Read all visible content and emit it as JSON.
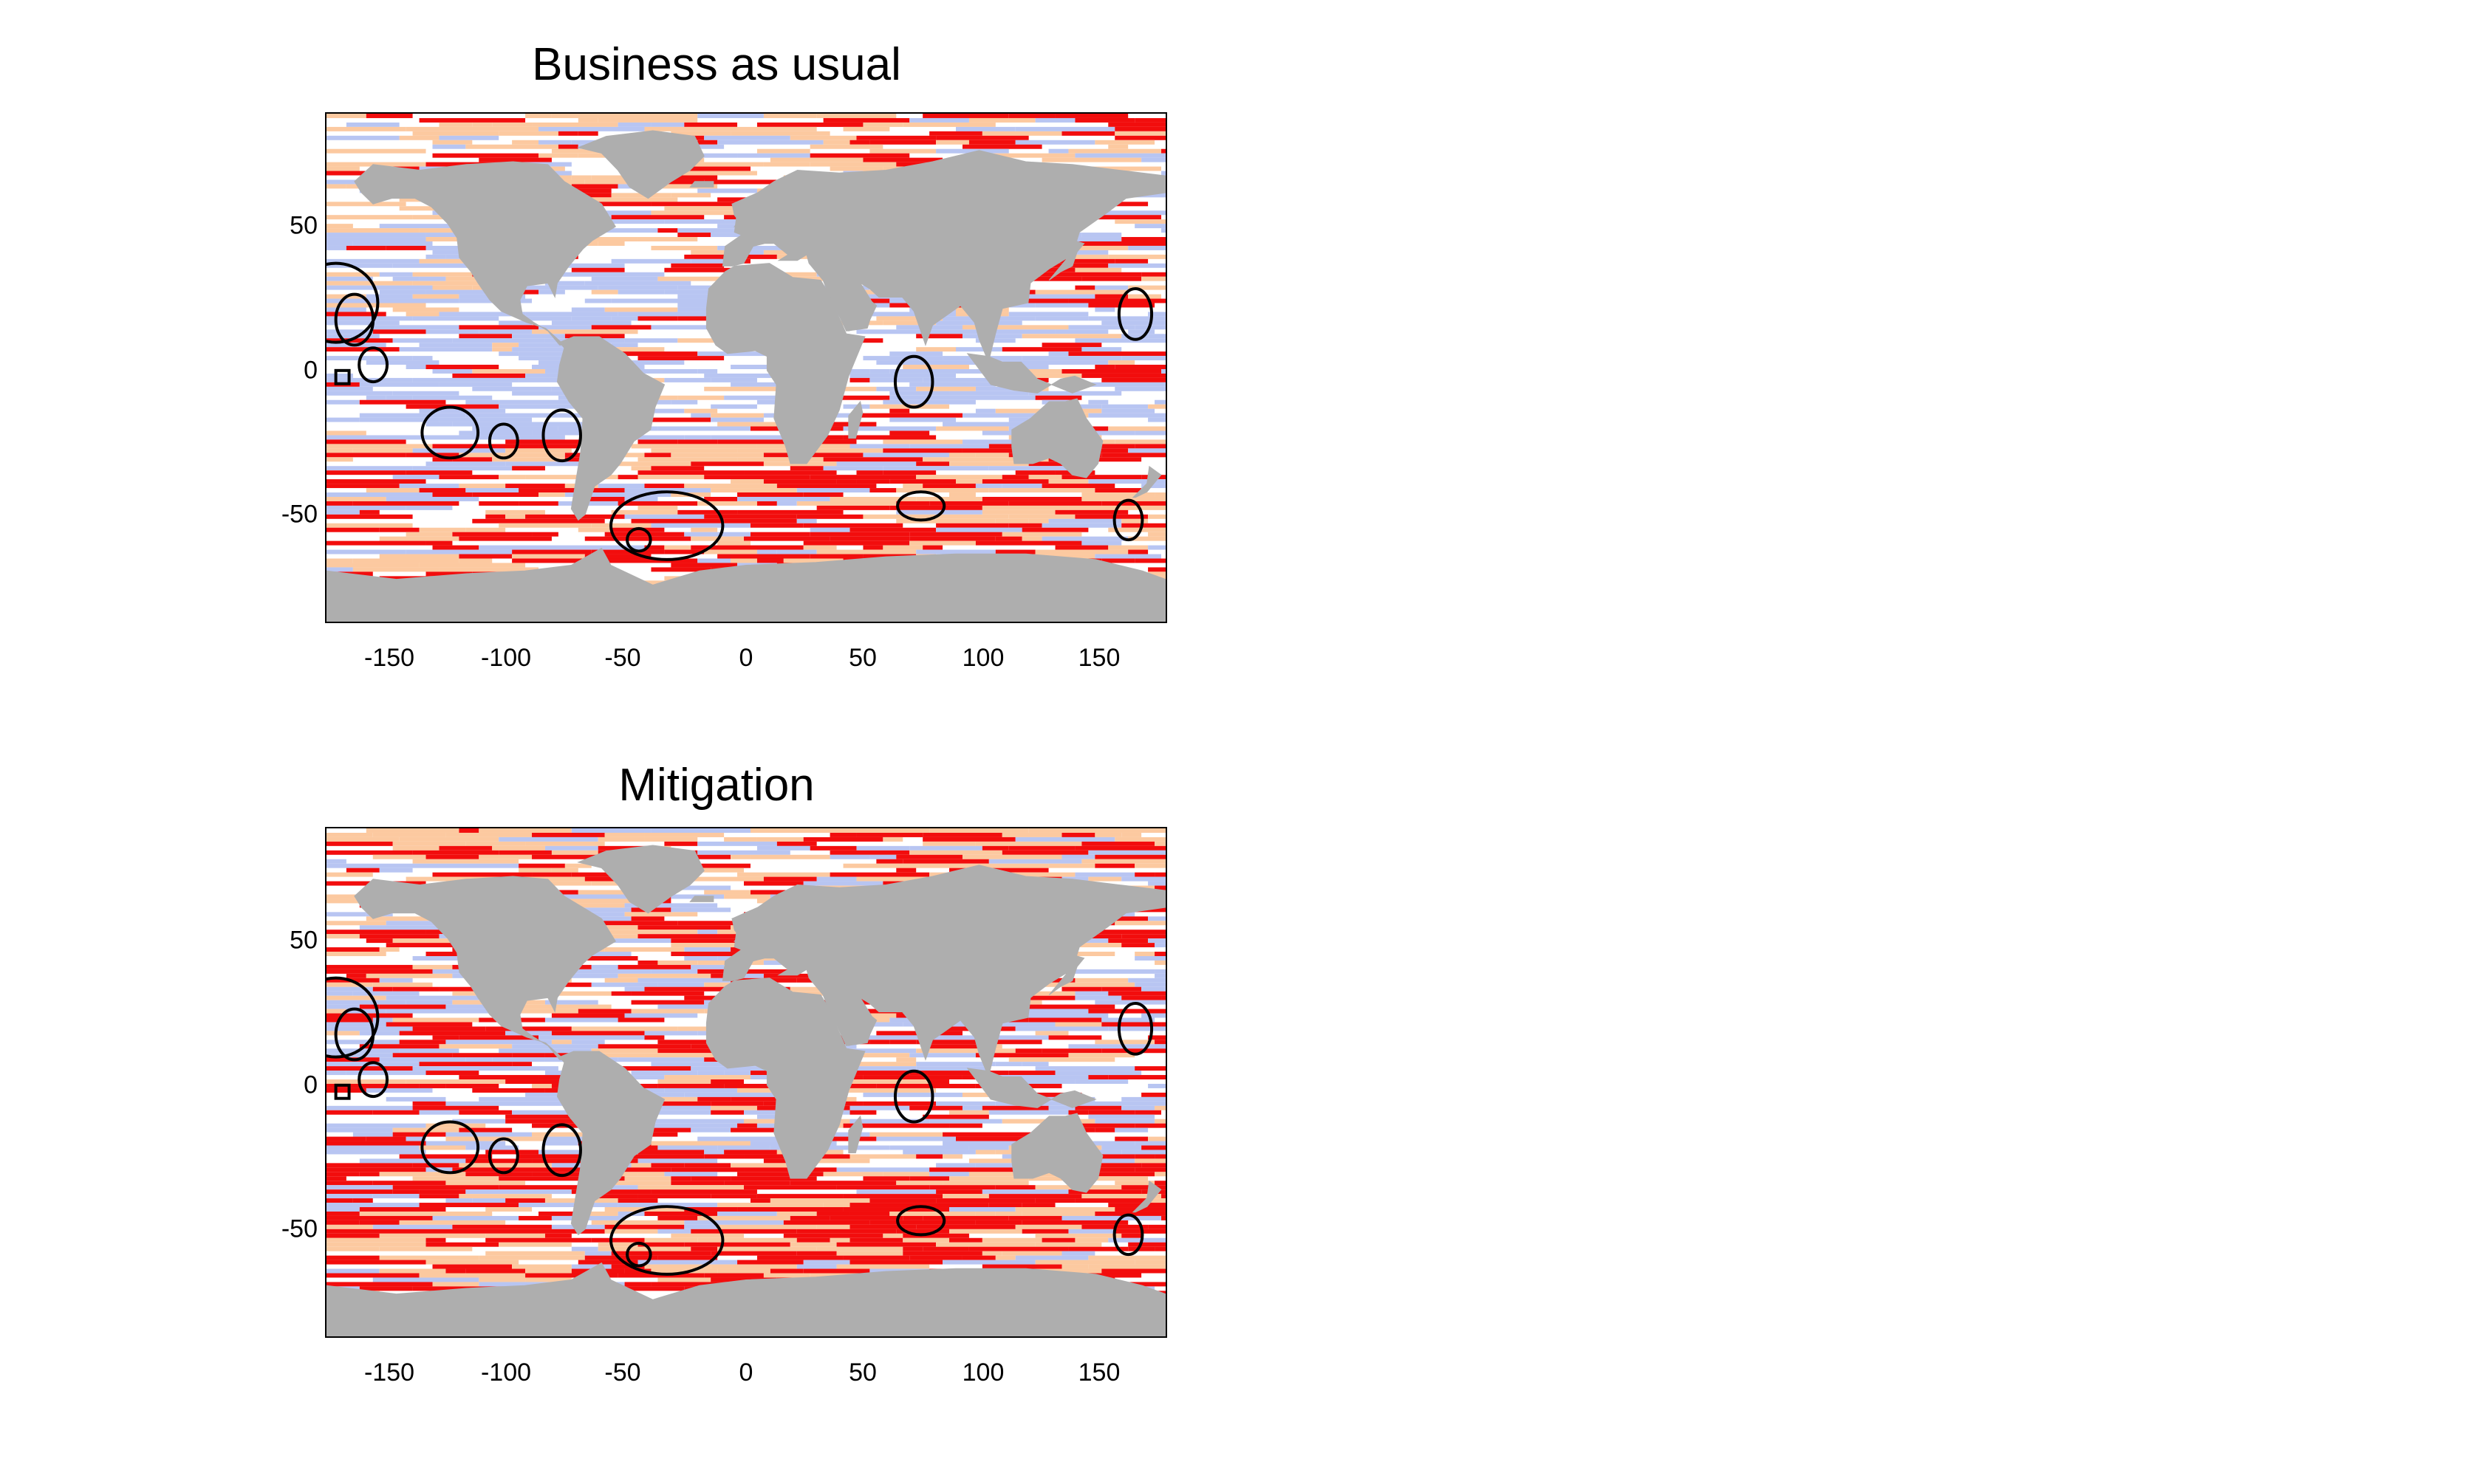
{
  "panels": [
    {
      "title": "Business as usual",
      "x_ticks": [
        "-150",
        "-100",
        "-50",
        "0",
        "50",
        "100",
        "150"
      ],
      "y_ticks": [
        "50",
        "0",
        "-50"
      ]
    },
    {
      "title": "Mitigation",
      "x_ticks": [
        "-150",
        "-100",
        "-50",
        "0",
        "50",
        "100",
        "150"
      ],
      "y_ticks": [
        "50",
        "0",
        "-50"
      ]
    }
  ],
  "map_axes": {
    "x_range": [
      -180,
      180
    ],
    "y_range": [
      -90,
      90
    ],
    "x_tick_values": [
      -150,
      -100,
      -50,
      0,
      50,
      100,
      150
    ],
    "y_tick_values": [
      50,
      0,
      -50
    ]
  },
  "colors": {
    "land": "#aeaeae",
    "ocean_white": "#ffffff",
    "light_blue": "#b8c5f2",
    "peach": "#fcc9a0",
    "red": "#f20d0d",
    "contour": "#000000"
  }
}
